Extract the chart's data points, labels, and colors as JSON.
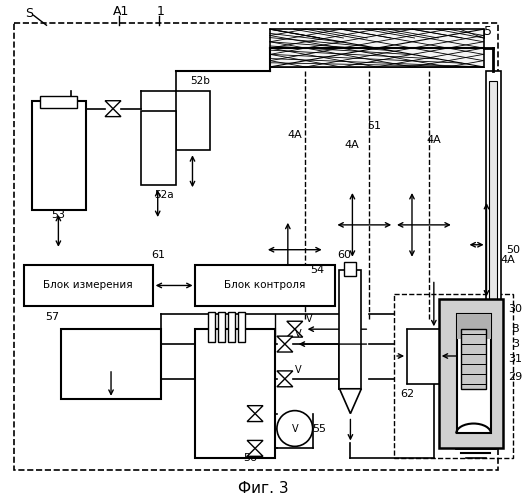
{
  "title": "Фиг. 3",
  "bg": "#ffffff",
  "label_S": "S",
  "label_A1": "A1",
  "label_1": "1",
  "label_5": "5",
  "label_50": "50",
  "label_51": "51",
  "label_4A": "4A",
  "label_52a": "52a",
  "label_52b": "52b",
  "label_53": "53",
  "label_61": "61",
  "label_60": "60",
  "label_blok_izm": "Блок измерения",
  "label_blok_kon": "Блок контроля",
  "label_54": "54",
  "label_56": "56",
  "label_55": "55",
  "label_57": "57",
  "label_62": "62",
  "label_30": "30",
  "label_B": "B",
  "label_3": "3",
  "label_31": "31",
  "label_29": "29",
  "label_V": "V"
}
